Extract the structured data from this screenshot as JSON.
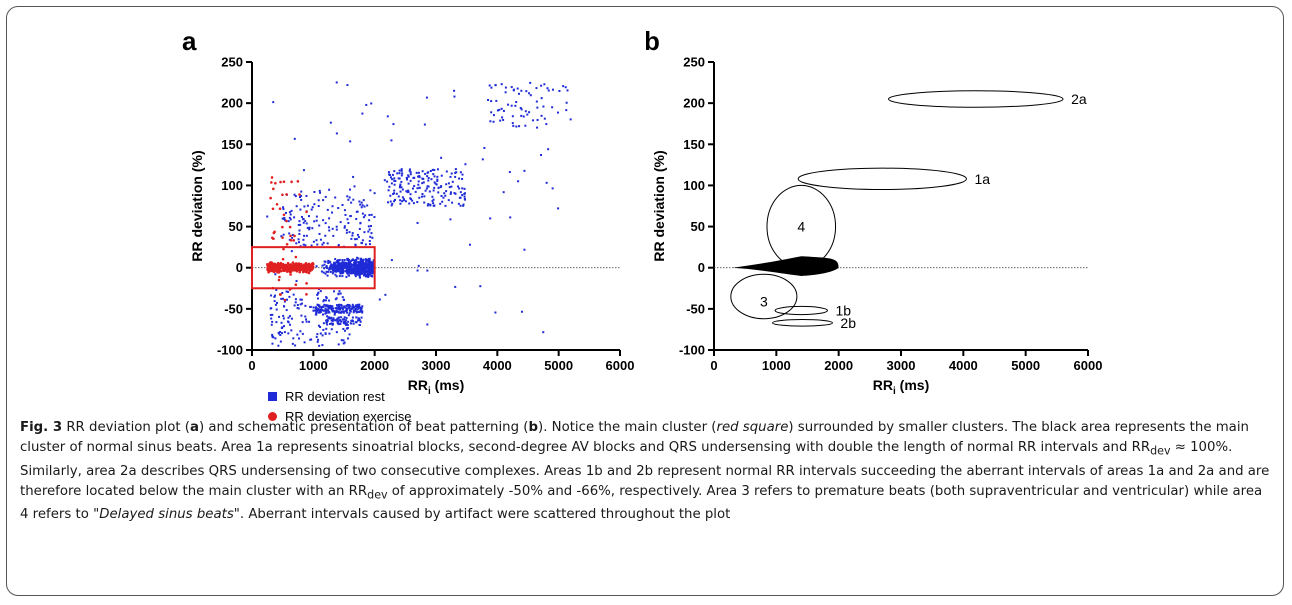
{
  "panel_a": {
    "label": "a",
    "xlabel_main": "RR",
    "xlabel_sub": "i",
    "xlabel_unit": " (ms)",
    "ylabel": "RR deviation (%)",
    "legend": [
      {
        "label": "RR deviation rest",
        "color": "#1f2bd6",
        "marker": "square"
      },
      {
        "label": "RR deviation exercise",
        "color": "#e02020",
        "marker": "circle"
      }
    ]
  },
  "panel_b": {
    "label": "b",
    "xlabel_main": "RR",
    "xlabel_sub": "i",
    "xlabel_unit": " (ms)",
    "ylabel": "RR deviation (%)",
    "areas": [
      {
        "label": "2a",
        "cx": 4200,
        "cy": 205,
        "rx": 1400,
        "ry": 10
      },
      {
        "label": "1a",
        "cx": 2700,
        "cy": 108,
        "rx": 1350,
        "ry": 13
      },
      {
        "label": "4",
        "cx": 1400,
        "cy": 50,
        "rx": 550,
        "ry": 50
      },
      {
        "label": "3",
        "cx": 800,
        "cy": -35,
        "rx": 530,
        "ry": 27
      },
      {
        "label": "1b",
        "cx": 1400,
        "cy": -52,
        "rx": 420,
        "ry": 5
      },
      {
        "label": "2b",
        "cx": 1420,
        "cy": -67,
        "rx": 480,
        "ry": 4
      }
    ]
  },
  "chart_data": [
    {
      "type": "scatter",
      "title": "",
      "xlabel": "RRi (ms)",
      "ylabel": "RR deviation (%)",
      "xlim": [
        0,
        6000
      ],
      "ylim": [
        -100,
        250
      ],
      "xticks": [
        0,
        1000,
        2000,
        3000,
        4000,
        5000,
        6000
      ],
      "yticks": [
        -100,
        -50,
        0,
        50,
        100,
        150,
        200,
        250
      ],
      "series": [
        {
          "name": "RR deviation rest",
          "color": "#1f2bd6",
          "clusters": [
            {
              "x": [
                800,
                2000
              ],
              "y": [
                -20,
                20
              ]
            },
            {
              "x": [
                2200,
                3500
              ],
              "y": [
                75,
                120
              ]
            },
            {
              "x": [
                3800,
                5200
              ],
              "y": [
                170,
                225
              ]
            },
            {
              "x": [
                1000,
                1800
              ],
              "y": [
                -55,
                -45
              ]
            },
            {
              "x": [
                1200,
                1800
              ],
              "y": [
                -70,
                -60
              ]
            },
            {
              "x": [
                300,
                1600
              ],
              "y": [
                -95,
                -25
              ]
            },
            {
              "x": [
                500,
                2000
              ],
              "y": [
                25,
                95
              ]
            }
          ]
        },
        {
          "name": "RR deviation exercise",
          "color": "#e02020",
          "clusters": [
            {
              "x": [
                250,
                1000
              ],
              "y": [
                -10,
                10
              ]
            },
            {
              "x": [
                300,
                900
              ],
              "y": [
                -40,
                110
              ]
            }
          ]
        }
      ],
      "highlight_box": {
        "x": [
          0,
          2000
        ],
        "y": [
          -25,
          25
        ],
        "color": "#e02020"
      },
      "reference_line": 0
    },
    {
      "type": "diagram",
      "title": "",
      "xlabel": "RRi (ms)",
      "ylabel": "RR deviation (%)",
      "xlim": [
        0,
        6000
      ],
      "ylim": [
        -100,
        250
      ],
      "xticks": [
        0,
        1000,
        2000,
        3000,
        4000,
        5000,
        6000
      ],
      "yticks": [
        -100,
        -50,
        0,
        50,
        100,
        150,
        200,
        250
      ]
    }
  ],
  "caption": {
    "fig_label": "Fig. 3",
    "segments": [
      {
        "t": " RR deviation plot (",
        "s": ""
      },
      {
        "t": "a",
        "s": "b"
      },
      {
        "t": ") and schematic presentation of beat patterning (",
        "s": ""
      },
      {
        "t": "b",
        "s": "b"
      },
      {
        "t": "). Notice the main cluster (",
        "s": ""
      },
      {
        "t": "red square",
        "s": "i"
      },
      {
        "t": ") surrounded by smaller clusters. The black area represents the main cluster of normal sinus beats. Area 1a represents sinoatrial blocks, second-degree AV blocks and QRS undersensing with double the length of normal RR intervals and RR",
        "s": ""
      },
      {
        "t": "dev",
        "s": "sub"
      },
      {
        "t": " ≈ 100%. Similarly, area 2a describes QRS undersensing of two consecutive complexes. Areas 1b and 2b represent normal RR intervals succeeding the aberrant intervals of areas 1a and 2a and are therefore located below the main cluster with an RR",
        "s": ""
      },
      {
        "t": "dev",
        "s": "sub"
      },
      {
        "t": " of approximately -50% and -66%, respectively. Area 3 refers to premature beats (both supraventricular and ventricular) while area 4 refers to ",
        "s": ""
      },
      {
        "t": "\"Delayed sinus beats\"",
        "s": "i"
      },
      {
        "t": ". Aberrant intervals caused by artifact were scattered throughout the plot",
        "s": ""
      }
    ]
  }
}
